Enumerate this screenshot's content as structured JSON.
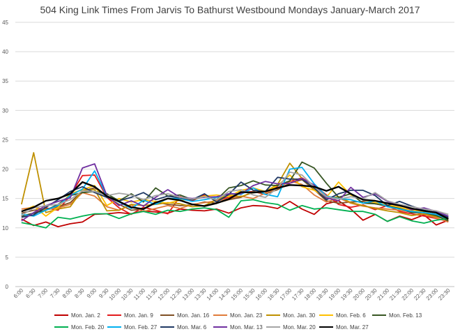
{
  "chart_data": {
    "type": "line",
    "title": "504 King Link Times From Jarvis To Bathurst Westbound Mondays January-March 2017",
    "xlabel": "",
    "ylabel": "",
    "ylim": [
      0,
      45
    ],
    "yticks": [
      0,
      5,
      10,
      15,
      20,
      25,
      30,
      35,
      40,
      45
    ],
    "grid": true,
    "legend_position": "bottom",
    "x": [
      "6:00",
      "6:30",
      "7:00",
      "7:30",
      "8:00",
      "8:30",
      "9:00",
      "9:30",
      "10:00",
      "10:30",
      "11:00",
      "11:30",
      "12:00",
      "12:30",
      "13:00",
      "13:30",
      "14:00",
      "14:30",
      "15:00",
      "15:30",
      "16:00",
      "16:30",
      "17:00",
      "17:30",
      "18:00",
      "18:30",
      "19:00",
      "19:30",
      "20:00",
      "20:30",
      "21:00",
      "21:30",
      "22:00",
      "22:30",
      "23:00",
      "23:30"
    ],
    "series": [
      {
        "name": "Mon. Jan. 2",
        "color": "#c00000",
        "values": [
          11.5,
          10.4,
          11.0,
          10.2,
          10.7,
          11.0,
          12.3,
          12.4,
          12.6,
          12.4,
          12.9,
          12.7,
          12.5,
          13.2,
          13.0,
          12.9,
          13.2,
          12.5,
          13.4,
          13.8,
          13.7,
          13.3,
          14.5,
          13.2,
          12.3,
          14.1,
          14.6,
          13.2,
          11.3,
          12.3,
          11.1,
          12.0,
          11.4,
          12.2,
          10.5,
          11.3
        ]
      },
      {
        "name": "Mon. Jan. 9",
        "color": "#e31a1c",
        "values": [
          12.0,
          12.5,
          13.4,
          13.0,
          15.5,
          18.9,
          19.0,
          15.2,
          13.4,
          12.3,
          13.5,
          13.0,
          12.4,
          15.3,
          14.6,
          15.6,
          14.8,
          15.2,
          16.0,
          16.2,
          15.7,
          17.0,
          17.9,
          18.5,
          17.2,
          15.6,
          14.0,
          13.5,
          13.9,
          13.1,
          13.8,
          12.8,
          12.4,
          12.0,
          11.6,
          11.1
        ]
      },
      {
        "name": "Mon. Jan. 16",
        "color": "#7f4f24",
        "values": [
          12.5,
          13.0,
          13.2,
          13.6,
          14.3,
          16.3,
          16.8,
          15.3,
          14.0,
          13.0,
          13.2,
          14.4,
          14.0,
          13.8,
          13.9,
          14.4,
          14.2,
          14.8,
          15.2,
          16.2,
          15.8,
          16.5,
          17.6,
          18.2,
          16.5,
          14.6,
          14.2,
          14.4,
          14.5,
          14.1,
          13.8,
          13.4,
          12.9,
          12.6,
          12.3,
          11.8
        ]
      },
      {
        "name": "Mon. Jan. 23",
        "color": "#e07b39",
        "values": [
          13.2,
          13.5,
          13.1,
          13.4,
          14.0,
          16.0,
          15.4,
          13.6,
          13.0,
          13.9,
          12.8,
          13.3,
          13.8,
          13.3,
          14.0,
          14.3,
          14.6,
          15.0,
          15.4,
          15.0,
          15.9,
          16.7,
          18.0,
          17.4,
          15.6,
          14.4,
          15.1,
          14.2,
          13.7,
          13.4,
          13.2,
          13.0,
          12.7,
          12.3,
          11.7,
          11.0
        ]
      },
      {
        "name": "Mon. Jan. 30",
        "color": "#bf9000",
        "values": [
          14.0,
          22.8,
          12.6,
          13.2,
          13.6,
          16.5,
          16.5,
          12.9,
          13.0,
          14.0,
          13.8,
          14.0,
          14.3,
          14.1,
          13.6,
          13.8,
          14.8,
          15.6,
          15.3,
          16.0,
          16.2,
          17.4,
          21.0,
          18.4,
          16.6,
          15.0,
          15.3,
          14.3,
          13.8,
          13.3,
          12.9,
          12.6,
          12.1,
          12.4,
          11.9,
          11.4
        ]
      },
      {
        "name": "Mon. Feb. 6",
        "color": "#ffc000",
        "values": [
          12.8,
          13.7,
          12.0,
          13.5,
          15.8,
          16.5,
          17.2,
          13.8,
          15.0,
          14.4,
          14.8,
          14.5,
          14.2,
          14.7,
          14.9,
          15.4,
          15.6,
          15.3,
          16.4,
          16.8,
          16.2,
          17.2,
          19.0,
          17.0,
          16.4,
          15.2,
          17.8,
          15.6,
          14.8,
          14.3,
          13.9,
          13.5,
          13.0,
          12.7,
          12.2,
          11.6
        ]
      },
      {
        "name": "Mon. Feb. 13",
        "color": "#375623",
        "values": [
          12.0,
          12.5,
          13.0,
          14.0,
          15.5,
          16.0,
          16.2,
          15.8,
          14.6,
          15.8,
          14.4,
          16.8,
          15.4,
          15.6,
          14.8,
          15.3,
          14.8,
          16.8,
          17.2,
          18.0,
          17.3,
          17.2,
          18.0,
          21.2,
          20.2,
          17.6,
          15.2,
          15.8,
          14.2,
          14.1,
          13.7,
          13.3,
          12.6,
          12.6,
          12.1,
          11.2
        ]
      },
      {
        "name": "Mon. Feb. 20",
        "color": "#00b050",
        "values": [
          10.9,
          10.5,
          10.0,
          11.8,
          11.5,
          12.0,
          12.4,
          12.4,
          11.6,
          12.4,
          12.8,
          12.3,
          13.0,
          12.8,
          13.2,
          13.4,
          13.1,
          11.8,
          14.6,
          14.8,
          14.3,
          14.0,
          13.0,
          13.8,
          13.2,
          13.4,
          13.1,
          12.8,
          12.8,
          12.3,
          11.1,
          11.9,
          11.2,
          10.8,
          11.3,
          11.6
        ]
      },
      {
        "name": "Mon. Feb. 27",
        "color": "#00b0f0",
        "values": [
          12.3,
          12.0,
          13.0,
          13.8,
          15.5,
          16.6,
          19.7,
          15.4,
          14.4,
          13.3,
          14.7,
          14.0,
          15.0,
          15.0,
          14.5,
          14.8,
          15.2,
          15.8,
          15.7,
          16.8,
          15.7,
          15.3,
          20.0,
          20.3,
          17.5,
          15.4,
          15.0,
          14.8,
          14.2,
          14.6,
          13.6,
          13.2,
          12.8,
          12.6,
          12.3,
          11.5
        ]
      },
      {
        "name": "Mon. Mar. 6",
        "color": "#1f3864",
        "values": [
          11.8,
          12.2,
          13.5,
          14.8,
          16.2,
          17.0,
          16.0,
          15.2,
          14.6,
          15.2,
          16.0,
          14.8,
          15.4,
          15.1,
          14.8,
          15.8,
          14.4,
          15.7,
          17.8,
          16.4,
          16.2,
          18.6,
          18.3,
          18.3,
          16.8,
          14.8,
          15.8,
          16.4,
          16.4,
          15.5,
          13.8,
          14.5,
          13.7,
          13.0,
          12.6,
          11.8
        ]
      },
      {
        "name": "Mon. Mar. 13",
        "color": "#7030a0",
        "values": [
          11.2,
          12.6,
          13.8,
          14.5,
          15.1,
          20.2,
          20.9,
          15.5,
          13.8,
          14.6,
          13.7,
          15.2,
          16.5,
          15.2,
          15.0,
          15.2,
          15.3,
          15.8,
          15.8,
          17.2,
          17.9,
          17.5,
          17.6,
          18.4,
          17.3,
          15.1,
          14.6,
          16.9,
          15.2,
          15.8,
          14.5,
          13.9,
          13.1,
          13.4,
          12.8,
          12.0
        ]
      },
      {
        "name": "Mon. Mar. 20",
        "color": "#a5a5a5",
        "values": [
          12.1,
          13.4,
          13.8,
          14.0,
          14.8,
          16.3,
          16.2,
          15.5,
          15.9,
          15.6,
          14.8,
          15.5,
          15.8,
          15.2,
          14.9,
          15.3,
          14.8,
          16.2,
          16.5,
          15.6,
          15.2,
          16.8,
          19.5,
          19.0,
          17.0,
          15.3,
          14.9,
          15.3,
          15.0,
          16.0,
          14.6,
          14.0,
          13.6,
          13.2,
          12.9,
          12.3
        ]
      },
      {
        "name": "Mon. Mar. 27",
        "color": "#000000",
        "values": [
          12.8,
          13.5,
          14.6,
          15.0,
          15.8,
          17.8,
          17.0,
          15.4,
          14.5,
          13.5,
          13.2,
          14.3,
          15.0,
          14.7,
          14.0,
          13.7,
          14.2,
          14.9,
          16.1,
          16.0,
          16.2,
          16.8,
          17.3,
          17.2,
          17.0,
          16.3,
          17.0,
          15.8,
          14.8,
          14.6,
          14.2,
          13.8,
          13.3,
          12.9,
          12.6,
          11.5
        ]
      }
    ]
  }
}
